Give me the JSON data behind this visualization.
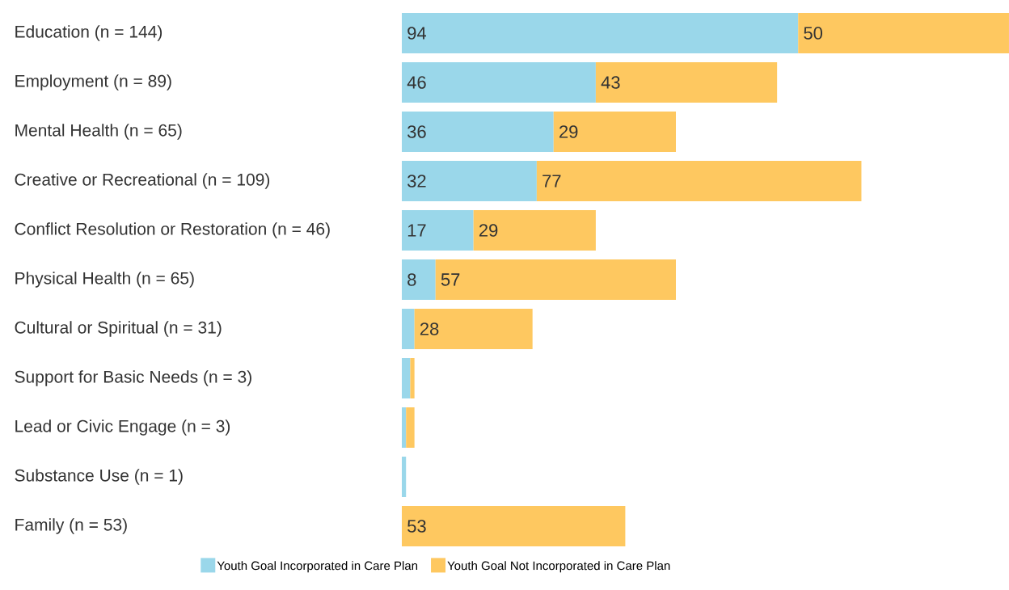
{
  "chart_data": {
    "type": "bar",
    "orientation": "horizontal",
    "stacked": true,
    "legend": "bottom",
    "categories": [
      "Education (n = 144)",
      "Employment (n = 89)",
      "Mental Health (n = 65)",
      "Creative or Recreational (n = 109)",
      "Conflict Resolution or Restoration (n = 46)",
      "Physical Health (n = 65)",
      "Cultural or Spiritual (n = 31)",
      "Support for Basic Needs (n = 3)",
      "Lead or Civic Engage (n = 3)",
      "Substance Use (n = 1)",
      "Family (n = 53)"
    ],
    "series": [
      {
        "name": "Youth Goal Incorporated in Care Plan",
        "color": "#9ad7ea",
        "values": [
          94,
          46,
          36,
          32,
          17,
          8,
          3,
          2,
          1,
          1,
          0
        ],
        "value_labels": [
          "94",
          "46",
          "36",
          "32",
          "17",
          "8",
          null,
          null,
          null,
          null,
          null
        ]
      },
      {
        "name": "Youth Goal Not Incorporated in Care Plan",
        "color": "#fec860",
        "values": [
          50,
          43,
          29,
          77,
          29,
          57,
          28,
          1,
          2,
          0,
          53
        ],
        "value_labels": [
          "50",
          "43",
          "29",
          "77",
          "29",
          "57",
          "28",
          null,
          null,
          null,
          "53"
        ]
      }
    ]
  }
}
